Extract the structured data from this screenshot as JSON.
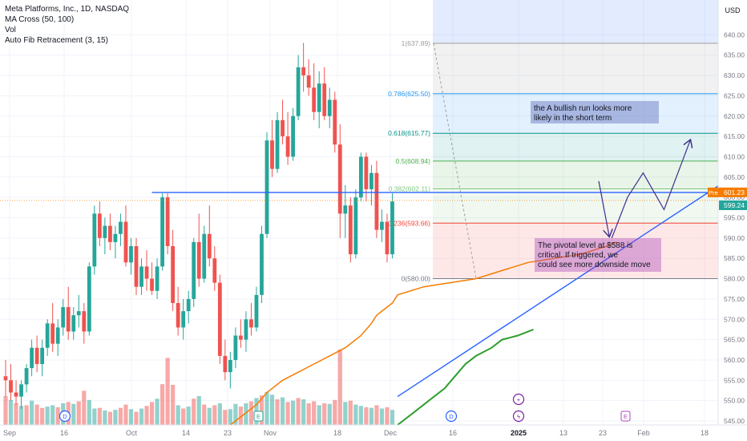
{
  "legend": {
    "title": "Meta Platforms, Inc., 1D, NASDAQ",
    "ma": "MA Cross (50, 100)",
    "vol": "Vol",
    "fib": "Auto Fib Retracement (3, 15)"
  },
  "currency": "USD",
  "price_tags": {
    "pre_label": "Pre",
    "pre_value": "601.23",
    "last_value": "599.24"
  },
  "annotations": {
    "bullish": "the A bullish run looks more likely in the short term",
    "pivotal": "The pivotal level at $588 is critical. If triggered, we could see more downside move"
  },
  "colors": {
    "up": "#26a69a",
    "down": "#ef5350",
    "ma_fast": "#f57c00",
    "ma_slow": "#2e9e2e",
    "trend": "#2962ff",
    "arrow": "#3c2f8f"
  },
  "chart_data": {
    "type": "candlestick",
    "ylim": [
      545,
      645
    ],
    "yticks": [
      "545.00",
      "550.00",
      "555.00",
      "560.00",
      "565.00",
      "570.00",
      "575.00",
      "580.00",
      "585.00",
      "590.00",
      "595.00",
      "600.00",
      "605.00",
      "610.00",
      "615.00",
      "620.00",
      "625.00",
      "630.00",
      "635.00",
      "640.00"
    ],
    "xticks": [
      "Sep",
      "16",
      "Oct",
      "14",
      "23",
      "Nov",
      "18",
      "Dec",
      "16",
      "2025",
      "13",
      "23",
      "Feb",
      "18"
    ],
    "candles": [
      {
        "o": 556,
        "h": 560,
        "l": 551,
        "c": 555
      },
      {
        "o": 555,
        "h": 559,
        "l": 550,
        "c": 552
      },
      {
        "o": 552,
        "h": 555,
        "l": 549,
        "c": 551
      },
      {
        "o": 551,
        "h": 555,
        "l": 548,
        "c": 554
      },
      {
        "o": 554,
        "h": 559,
        "l": 552,
        "c": 558
      },
      {
        "o": 558,
        "h": 565,
        "l": 556,
        "c": 563
      },
      {
        "o": 563,
        "h": 566,
        "l": 557,
        "c": 559
      },
      {
        "o": 559,
        "h": 565,
        "l": 556,
        "c": 563
      },
      {
        "o": 563,
        "h": 570,
        "l": 561,
        "c": 569
      },
      {
        "o": 569,
        "h": 574,
        "l": 562,
        "c": 564
      },
      {
        "o": 564,
        "h": 570,
        "l": 561,
        "c": 568
      },
      {
        "o": 568,
        "h": 575,
        "l": 566,
        "c": 573
      },
      {
        "o": 573,
        "h": 578,
        "l": 565,
        "c": 567
      },
      {
        "o": 567,
        "h": 573,
        "l": 565,
        "c": 571
      },
      {
        "o": 571,
        "h": 576,
        "l": 568,
        "c": 572
      },
      {
        "o": 572,
        "h": 574,
        "l": 564,
        "c": 567
      },
      {
        "o": 567,
        "h": 584,
        "l": 566,
        "c": 583
      },
      {
        "o": 583,
        "h": 598,
        "l": 581,
        "c": 596
      },
      {
        "o": 596,
        "h": 599,
        "l": 588,
        "c": 590
      },
      {
        "o": 590,
        "h": 595,
        "l": 586,
        "c": 593
      },
      {
        "o": 593,
        "h": 596,
        "l": 587,
        "c": 589
      },
      {
        "o": 589,
        "h": 593,
        "l": 585,
        "c": 591
      },
      {
        "o": 591,
        "h": 596,
        "l": 588,
        "c": 594
      },
      {
        "o": 594,
        "h": 598,
        "l": 583,
        "c": 584
      },
      {
        "o": 584,
        "h": 590,
        "l": 581,
        "c": 588
      },
      {
        "o": 588,
        "h": 590,
        "l": 576,
        "c": 578
      },
      {
        "o": 578,
        "h": 585,
        "l": 576,
        "c": 583
      },
      {
        "o": 583,
        "h": 587,
        "l": 577,
        "c": 580
      },
      {
        "o": 580,
        "h": 584,
        "l": 576,
        "c": 577
      },
      {
        "o": 577,
        "h": 585,
        "l": 575,
        "c": 583
      },
      {
        "o": 583,
        "h": 601,
        "l": 582,
        "c": 600
      },
      {
        "o": 600,
        "h": 601,
        "l": 586,
        "c": 588
      },
      {
        "o": 588,
        "h": 592,
        "l": 572,
        "c": 574
      },
      {
        "o": 574,
        "h": 578,
        "l": 566,
        "c": 568
      },
      {
        "o": 568,
        "h": 575,
        "l": 565,
        "c": 572
      },
      {
        "o": 572,
        "h": 577,
        "l": 569,
        "c": 575
      },
      {
        "o": 575,
        "h": 590,
        "l": 573,
        "c": 589
      },
      {
        "o": 589,
        "h": 596,
        "l": 578,
        "c": 580
      },
      {
        "o": 580,
        "h": 593,
        "l": 579,
        "c": 591
      },
      {
        "o": 591,
        "h": 598,
        "l": 583,
        "c": 585
      },
      {
        "o": 585,
        "h": 588,
        "l": 577,
        "c": 579
      },
      {
        "o": 579,
        "h": 581,
        "l": 559,
        "c": 561
      },
      {
        "o": 561,
        "h": 565,
        "l": 555,
        "c": 557
      },
      {
        "o": 557,
        "h": 562,
        "l": 553,
        "c": 560
      },
      {
        "o": 560,
        "h": 568,
        "l": 558,
        "c": 566
      },
      {
        "o": 566,
        "h": 570,
        "l": 563,
        "c": 565
      },
      {
        "o": 565,
        "h": 572,
        "l": 562,
        "c": 570
      },
      {
        "o": 570,
        "h": 574,
        "l": 566,
        "c": 568
      },
      {
        "o": 568,
        "h": 578,
        "l": 567,
        "c": 576
      },
      {
        "o": 576,
        "h": 593,
        "l": 574,
        "c": 591
      },
      {
        "o": 591,
        "h": 616,
        "l": 590,
        "c": 614
      },
      {
        "o": 614,
        "h": 619,
        "l": 605,
        "c": 607
      },
      {
        "o": 607,
        "h": 621,
        "l": 606,
        "c": 619
      },
      {
        "o": 619,
        "h": 624,
        "l": 613,
        "c": 615
      },
      {
        "o": 615,
        "h": 621,
        "l": 608,
        "c": 610
      },
      {
        "o": 610,
        "h": 622,
        "l": 609,
        "c": 620
      },
      {
        "o": 620,
        "h": 635,
        "l": 619,
        "c": 632
      },
      {
        "o": 632,
        "h": 638,
        "l": 626,
        "c": 630
      },
      {
        "o": 630,
        "h": 634,
        "l": 625,
        "c": 627
      },
      {
        "o": 627,
        "h": 633,
        "l": 619,
        "c": 621
      },
      {
        "o": 621,
        "h": 631,
        "l": 617,
        "c": 628
      },
      {
        "o": 628,
        "h": 632,
        "l": 619,
        "c": 620
      },
      {
        "o": 620,
        "h": 627,
        "l": 617,
        "c": 624
      },
      {
        "o": 624,
        "h": 626,
        "l": 611,
        "c": 613
      },
      {
        "o": 613,
        "h": 618,
        "l": 590,
        "c": 596
      },
      {
        "o": 596,
        "h": 603,
        "l": 590,
        "c": 598
      },
      {
        "o": 598,
        "h": 600,
        "l": 584,
        "c": 586
      },
      {
        "o": 586,
        "h": 602,
        "l": 585,
        "c": 600
      },
      {
        "o": 600,
        "h": 611,
        "l": 599,
        "c": 610
      },
      {
        "o": 610,
        "h": 611,
        "l": 599,
        "c": 602
      },
      {
        "o": 602,
        "h": 608,
        "l": 598,
        "c": 606
      },
      {
        "o": 606,
        "h": 609,
        "l": 590,
        "c": 592
      },
      {
        "o": 592,
        "h": 597,
        "l": 589,
        "c": 594
      },
      {
        "o": 594,
        "h": 596,
        "l": 584,
        "c": 586
      },
      {
        "o": 586,
        "h": 601,
        "l": 585,
        "c": 599
      }
    ],
    "volume": [
      {
        "v": 4.4,
        "up": false
      },
      {
        "v": 3.8,
        "up": true
      },
      {
        "v": 3.3,
        "up": false
      },
      {
        "v": 2.9,
        "up": true
      },
      {
        "v": 3.0,
        "up": false
      },
      {
        "v": 3.7,
        "up": true
      },
      {
        "v": 3.1,
        "up": false
      },
      {
        "v": 2.6,
        "up": false
      },
      {
        "v": 2.8,
        "up": true
      },
      {
        "v": 3.0,
        "up": true
      },
      {
        "v": 2.7,
        "up": false
      },
      {
        "v": 3.3,
        "up": true
      },
      {
        "v": 3.5,
        "up": false
      },
      {
        "v": 3.2,
        "up": true
      },
      {
        "v": 3.6,
        "up": false
      },
      {
        "v": 5.2,
        "up": false
      },
      {
        "v": 3.8,
        "up": true
      },
      {
        "v": 2.5,
        "up": true
      },
      {
        "v": 2.6,
        "up": false
      },
      {
        "v": 2.2,
        "up": true
      },
      {
        "v": 2.0,
        "up": false
      },
      {
        "v": 2.3,
        "up": true
      },
      {
        "v": 2.6,
        "up": false
      },
      {
        "v": 3.1,
        "up": false
      },
      {
        "v": 2.4,
        "up": true
      },
      {
        "v": 2.0,
        "up": false
      },
      {
        "v": 2.5,
        "up": true
      },
      {
        "v": 2.9,
        "up": false
      },
      {
        "v": 3.5,
        "up": false
      },
      {
        "v": 4.0,
        "up": true
      },
      {
        "v": 6.2,
        "up": false
      },
      {
        "v": 10.2,
        "up": false
      },
      {
        "v": 6.1,
        "up": false
      },
      {
        "v": 3.0,
        "up": true
      },
      {
        "v": 2.5,
        "up": false
      },
      {
        "v": 2.8,
        "up": true
      },
      {
        "v": 4.0,
        "up": false
      },
      {
        "v": 4.4,
        "up": true
      },
      {
        "v": 3.1,
        "up": false
      },
      {
        "v": 2.6,
        "up": true
      },
      {
        "v": 3.0,
        "up": false
      },
      {
        "v": 3.3,
        "up": true
      },
      {
        "v": 2.3,
        "up": false
      },
      {
        "v": 2.4,
        "up": true
      },
      {
        "v": 3.2,
        "up": true
      },
      {
        "v": 2.8,
        "up": false
      },
      {
        "v": 3.3,
        "up": true
      },
      {
        "v": 3.6,
        "up": false
      },
      {
        "v": 4.1,
        "up": true
      },
      {
        "v": 4.5,
        "up": false
      },
      {
        "v": 5.0,
        "up": true
      },
      {
        "v": 4.6,
        "up": true
      },
      {
        "v": 3.9,
        "up": false
      },
      {
        "v": 4.2,
        "up": true
      },
      {
        "v": 3.5,
        "up": false
      },
      {
        "v": 3.7,
        "up": true
      },
      {
        "v": 4.1,
        "up": false
      },
      {
        "v": 3.9,
        "up": true
      },
      {
        "v": 3.3,
        "up": false
      },
      {
        "v": 3.6,
        "up": false
      },
      {
        "v": 3.0,
        "up": true
      },
      {
        "v": 3.3,
        "up": false
      },
      {
        "v": 3.2,
        "up": true
      },
      {
        "v": 3.8,
        "up": false
      },
      {
        "v": 11.5,
        "up": false
      },
      {
        "v": 3.5,
        "up": true
      },
      {
        "v": 3.7,
        "up": false
      },
      {
        "v": 3.1,
        "up": true
      },
      {
        "v": 2.9,
        "up": true
      },
      {
        "v": 2.7,
        "up": false
      },
      {
        "v": 2.6,
        "up": true
      },
      {
        "v": 3.0,
        "up": false
      },
      {
        "v": 2.5,
        "up": true
      },
      {
        "v": 2.7,
        "up": false
      },
      {
        "v": 2.3,
        "up": true
      }
    ],
    "ma_fast": [
      [
        37,
        540
      ],
      [
        42,
        543
      ],
      [
        45,
        546
      ],
      [
        48,
        549
      ],
      [
        50,
        552
      ],
      [
        53,
        555
      ],
      [
        56,
        557
      ],
      [
        59,
        559
      ],
      [
        62,
        561
      ],
      [
        65,
        563
      ],
      [
        68,
        566
      ],
      [
        70,
        569
      ],
      [
        71,
        571
      ],
      [
        72,
        572
      ],
      [
        73,
        573
      ],
      [
        74,
        574
      ],
      [
        75,
        576
      ],
      [
        80,
        578
      ],
      [
        85,
        579
      ],
      [
        90,
        580
      ],
      [
        95,
        582
      ],
      [
        100,
        584
      ],
      [
        105,
        585
      ],
      [
        110,
        586
      ],
      [
        115,
        588
      ],
      [
        117,
        589
      ]
    ],
    "ma_slow": [
      [
        74,
        543
      ],
      [
        78,
        547
      ],
      [
        80,
        549
      ],
      [
        82,
        551
      ],
      [
        84,
        553
      ],
      [
        86,
        556
      ],
      [
        88,
        559
      ],
      [
        90,
        561
      ],
      [
        93,
        563
      ],
      [
        95,
        565
      ],
      [
        98,
        566
      ],
      [
        101,
        567.5
      ]
    ],
    "fib_levels": [
      {
        "label": "1(637.89)",
        "value": 637.89,
        "color": "#9e9e9e"
      },
      {
        "label": "0.786(625.50)",
        "value": 625.5,
        "color": "#2196f3"
      },
      {
        "label": "0.618(615.77)",
        "value": 615.77,
        "color": "#009688"
      },
      {
        "label": "0.5(608.94)",
        "value": 608.94,
        "color": "#4caf50"
      },
      {
        "label": "0.382(602.11)",
        "value": 602.11,
        "color": "#81c784"
      },
      {
        "label": "0.236(593.66)",
        "value": 593.66,
        "color": "#f44336"
      },
      {
        "label": "0(580.00)",
        "value": 580.0,
        "color": "#787b86"
      }
    ],
    "horizontal_level": 601.2,
    "trend_line": [
      [
        75,
        551
      ],
      [
        165,
        627
      ]
    ],
    "path_projection": [
      [
        116,
        590
      ],
      [
        119,
        600
      ],
      [
        122,
        606
      ],
      [
        126,
        597
      ],
      [
        131,
        614
      ]
    ]
  }
}
